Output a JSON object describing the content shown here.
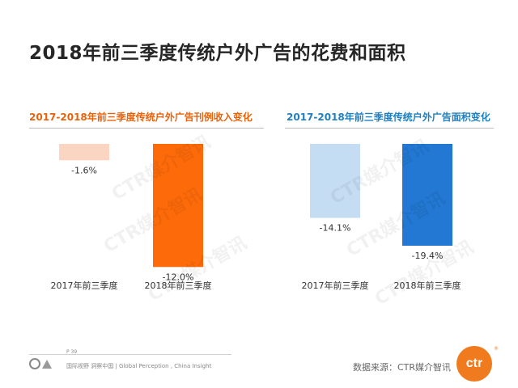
{
  "page": {
    "title": "2018年前三季度传统户外广告的花费和面积",
    "page_number": "P 39",
    "footer_text": "国际视野 洞察中国 | Global Perception , China Insight",
    "source": "数据来源：CTR媒介智讯",
    "watermark": "CTR媒介智讯",
    "logo_text": "ctr",
    "logo_mark": "®"
  },
  "colors": {
    "left_2017": "#fad5c2",
    "left_2018": "#fd6a0a",
    "right_2017": "#c4ddf3",
    "right_2018": "#2278d2",
    "left_title": "#e8620c",
    "right_title": "#1f7fbf"
  },
  "chart_data": [
    {
      "type": "bar",
      "title": "2017-2018年前三季度传统户外广告刊例收入变化",
      "categories": [
        "2017年前三季度",
        "2018年前三季度"
      ],
      "values": [
        -1.6,
        -12.0
      ],
      "data_labels": [
        "-1.6%",
        "-12.0%"
      ],
      "ylim": [
        -13,
        0
      ],
      "grid": false,
      "legend": "none"
    },
    {
      "type": "bar",
      "title": "2017-2018年前三季度传统户外广告面积变化",
      "categories": [
        "2017年前三季度",
        "2018年前三季度"
      ],
      "values": [
        -14.1,
        -19.4
      ],
      "data_labels": [
        "-14.1%",
        "-19.4%"
      ],
      "ylim": [
        -19.4,
        0
      ],
      "grid": false,
      "legend": "none"
    }
  ]
}
